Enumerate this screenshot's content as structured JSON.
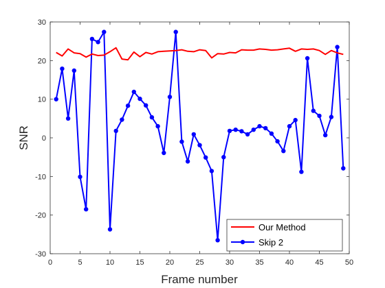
{
  "chart_data": {
    "type": "line",
    "title": "",
    "xlabel": "Frame number",
    "ylabel": "SNR",
    "xlim": [
      0,
      50
    ],
    "ylim": [
      -30,
      30
    ],
    "xticks": [
      0,
      5,
      10,
      15,
      20,
      25,
      30,
      35,
      40,
      45,
      50
    ],
    "yticks": [
      -30,
      -20,
      -10,
      0,
      10,
      20,
      30
    ],
    "grid": false,
    "legend_position": "bottom-right",
    "series": [
      {
        "name": "Our Method",
        "color": "#ff0000",
        "marker": "none",
        "x": [
          1,
          2,
          3,
          4,
          5,
          6,
          7,
          8,
          9,
          10,
          11,
          12,
          13,
          14,
          15,
          16,
          17,
          18,
          19,
          20,
          21,
          22,
          23,
          24,
          25,
          26,
          27,
          28,
          29,
          30,
          31,
          32,
          33,
          34,
          35,
          36,
          37,
          38,
          39,
          40,
          41,
          42,
          43,
          44,
          45,
          46,
          47,
          48,
          49
        ],
        "y": [
          22.1,
          21.2,
          23.0,
          22.0,
          21.8,
          20.9,
          21.7,
          21.3,
          21.4,
          22.3,
          23.3,
          20.4,
          20.2,
          22.2,
          21.0,
          22.1,
          21.7,
          22.3,
          22.4,
          22.5,
          22.6,
          22.8,
          22.4,
          22.3,
          22.8,
          22.6,
          20.7,
          21.8,
          21.7,
          22.1,
          22.0,
          22.8,
          22.7,
          22.7,
          23.0,
          22.9,
          22.7,
          22.8,
          23.0,
          23.2,
          22.4,
          23.0,
          22.9,
          23.0,
          22.6,
          21.6,
          22.6,
          22.0,
          21.6
        ]
      },
      {
        "name": "Skip 2",
        "color": "#0000ff",
        "marker": "circle",
        "x": [
          1,
          2,
          3,
          4,
          5,
          6,
          7,
          8,
          9,
          10,
          11,
          12,
          13,
          14,
          15,
          16,
          17,
          18,
          19,
          20,
          21,
          22,
          23,
          24,
          25,
          26,
          27,
          28,
          29,
          30,
          31,
          32,
          33,
          34,
          35,
          36,
          37,
          38,
          39,
          40,
          41,
          42,
          43,
          44,
          45,
          46,
          47,
          48,
          49
        ],
        "y": [
          10.0,
          17.9,
          5.0,
          17.4,
          -10.1,
          -18.5,
          25.6,
          24.8,
          27.4,
          -23.7,
          1.8,
          4.7,
          8.3,
          11.9,
          10.1,
          8.4,
          5.3,
          3.0,
          -3.9,
          10.6,
          27.4,
          -1.0,
          -6.1,
          0.9,
          -1.9,
          -5.1,
          -8.6,
          -26.5,
          -5.0,
          1.8,
          2.1,
          1.7,
          0.9,
          2.1,
          3.0,
          2.5,
          1.1,
          -0.9,
          -3.4,
          3.0,
          4.6,
          -8.8,
          20.6,
          7.0,
          5.7,
          0.7,
          5.4,
          23.5,
          -7.9
        ]
      }
    ]
  }
}
